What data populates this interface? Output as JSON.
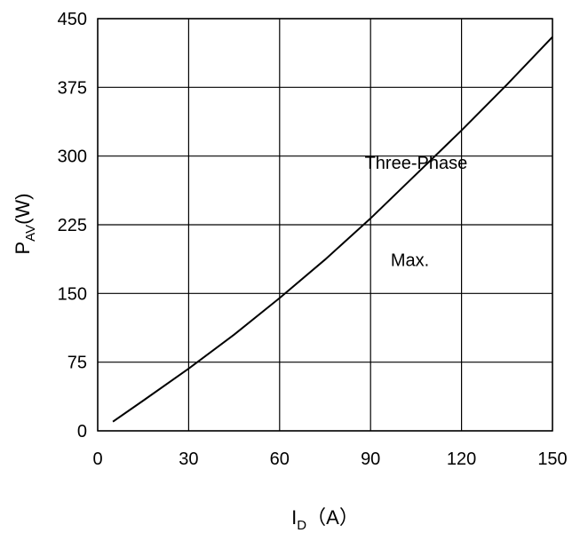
{
  "chart_data": {
    "type": "line",
    "title": "",
    "xlabel": {
      "main": "I",
      "sub": "D",
      "unit": "（A）"
    },
    "ylabel": {
      "main": "P",
      "sub": "AV",
      "unit": "(W)"
    },
    "xlim": [
      0,
      150
    ],
    "ylim": [
      0,
      450
    ],
    "xticks": [
      0,
      30,
      60,
      90,
      120,
      150
    ],
    "yticks": [
      0,
      75,
      150,
      225,
      300,
      375,
      450
    ],
    "grid": true,
    "legend": "none",
    "annotations": [
      {
        "text": "Three-Phase",
        "x": 105,
        "y": 286
      },
      {
        "text": "Max.",
        "x": 103,
        "y": 180
      }
    ],
    "series": [
      {
        "color": "#000000",
        "x": [
          5,
          15,
          30,
          45,
          60,
          75,
          90,
          105,
          120,
          135,
          150
        ],
        "y": [
          10,
          33,
          68,
          105,
          145,
          187,
          232,
          280,
          328,
          378,
          430
        ]
      }
    ]
  }
}
